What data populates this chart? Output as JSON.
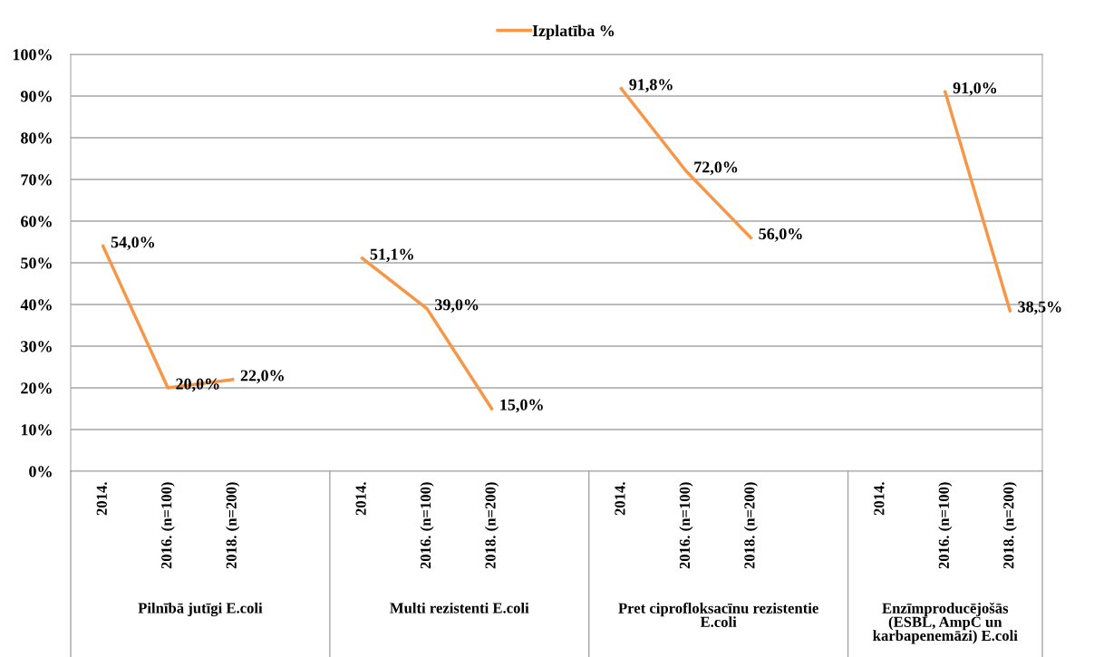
{
  "chart_data": {
    "type": "line",
    "categories": [
      "2014.",
      "2016. (n=100)",
      "2018. (n=200)",
      null,
      "2014.",
      "2016. (n=100)",
      "2018. (n=200)",
      null,
      "2014.",
      "2016. (n=100)",
      "2018. (n=200)",
      null,
      "2014.",
      "2016. (n=100)",
      "2018. (n=200)"
    ],
    "series": [
      {
        "name": "Izplatība %",
        "color": "#f79646",
        "values": [
          54.0,
          20.0,
          22.0,
          null,
          51.1,
          39.0,
          15.0,
          null,
          91.8,
          72.0,
          56.0,
          null,
          null,
          91.0,
          38.5
        ],
        "value_labels": [
          "54,0%",
          "20,0%",
          "22,0%",
          null,
          "51,1%",
          "39,0%",
          "15,0%",
          null,
          "91,8%",
          "72,0%",
          "56,0%",
          null,
          null,
          "91,0%",
          "38,5%"
        ]
      }
    ],
    "annotations": [
      "Pilnībā jutīgi E.coli",
      "Multi rezistenti E.coli",
      "Pret ciprofloksacīnu rezistentie E.coli",
      "Enzīmproducējošās (ESBL, AmpC un karbapenemāzi) E.coli"
    ],
    "ylim": [
      0,
      100
    ],
    "yticks": [
      {
        "value": 0,
        "label": "0%"
      },
      {
        "value": 10,
        "label": "10%"
      },
      {
        "value": 20,
        "label": "20%"
      },
      {
        "value": 30,
        "label": "30%"
      },
      {
        "value": 40,
        "label": "40%"
      },
      {
        "value": 50,
        "label": "50%"
      },
      {
        "value": 60,
        "label": "60%"
      },
      {
        "value": 70,
        "label": "70%"
      },
      {
        "value": 80,
        "label": "80%"
      },
      {
        "value": 90,
        "label": "90%"
      },
      {
        "value": 100,
        "label": "100%"
      }
    ],
    "grid": "y",
    "legend": "top",
    "marker": "none",
    "line_style": "solid"
  }
}
